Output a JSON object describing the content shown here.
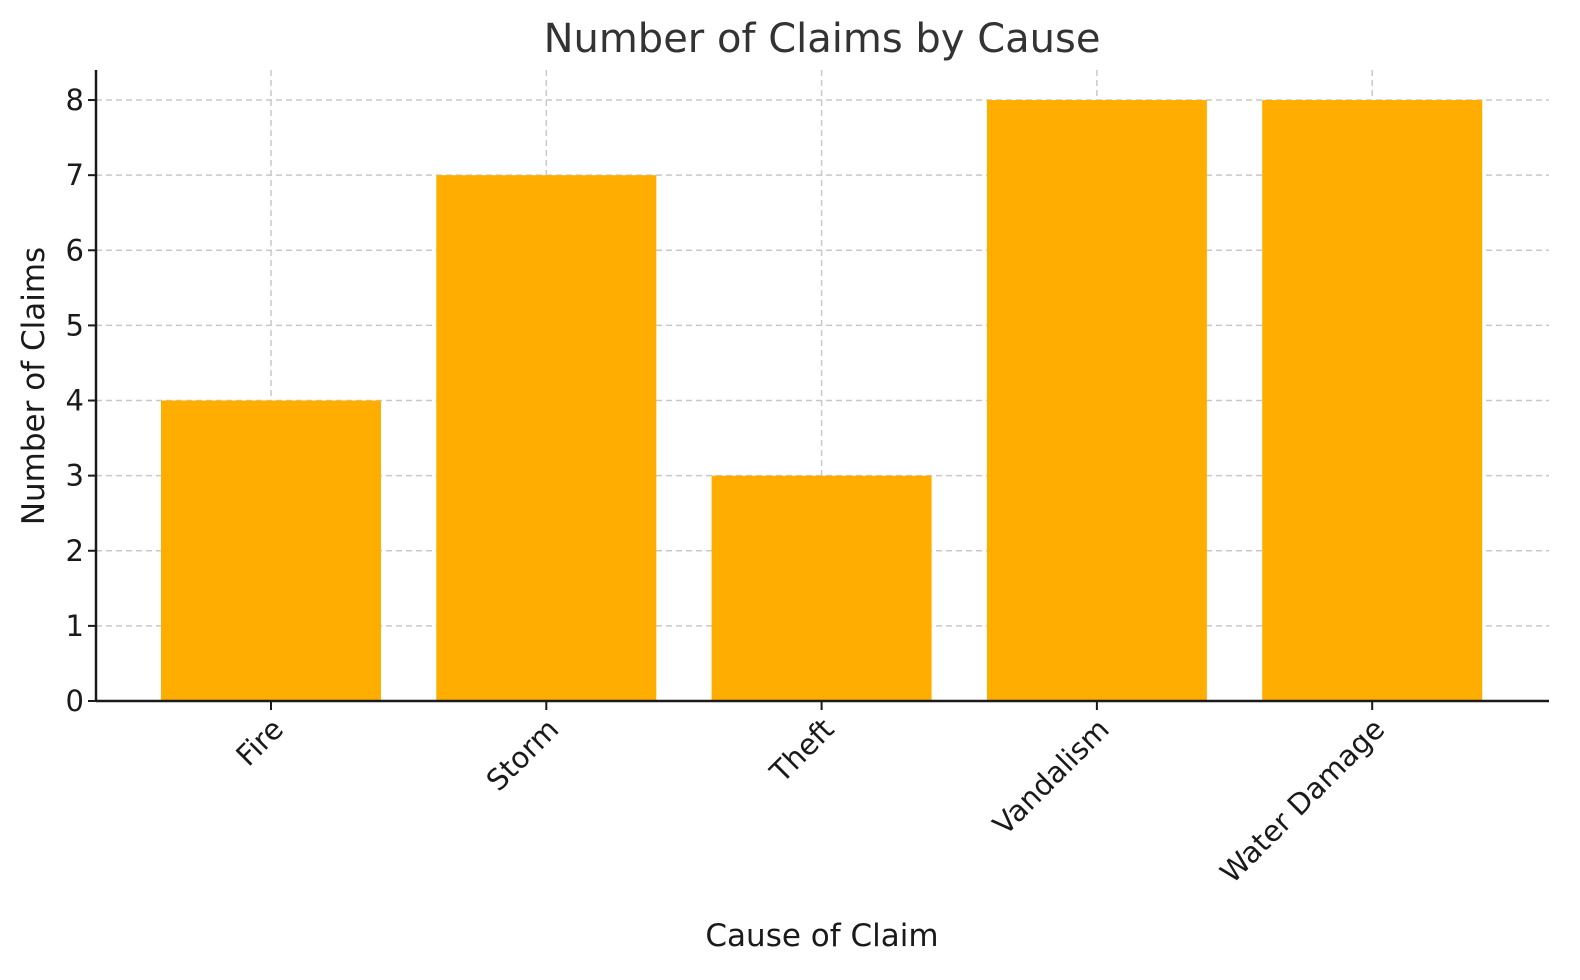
{
  "chart_data": {
    "type": "bar",
    "title": "Number of Claims by Cause",
    "xlabel": "Cause of Claim",
    "ylabel": "Number of Claims",
    "categories": [
      "Fire",
      "Storm",
      "Theft",
      "Vandalism",
      "Water Damage"
    ],
    "values": [
      4,
      7,
      3,
      8,
      8
    ],
    "ylim": [
      0,
      8.4
    ],
    "yticks": [
      "0",
      "1",
      "2",
      "3",
      "4",
      "5",
      "6",
      "7",
      "8"
    ],
    "grid": true,
    "bar_color": "#FFAE00",
    "legend": "none"
  }
}
